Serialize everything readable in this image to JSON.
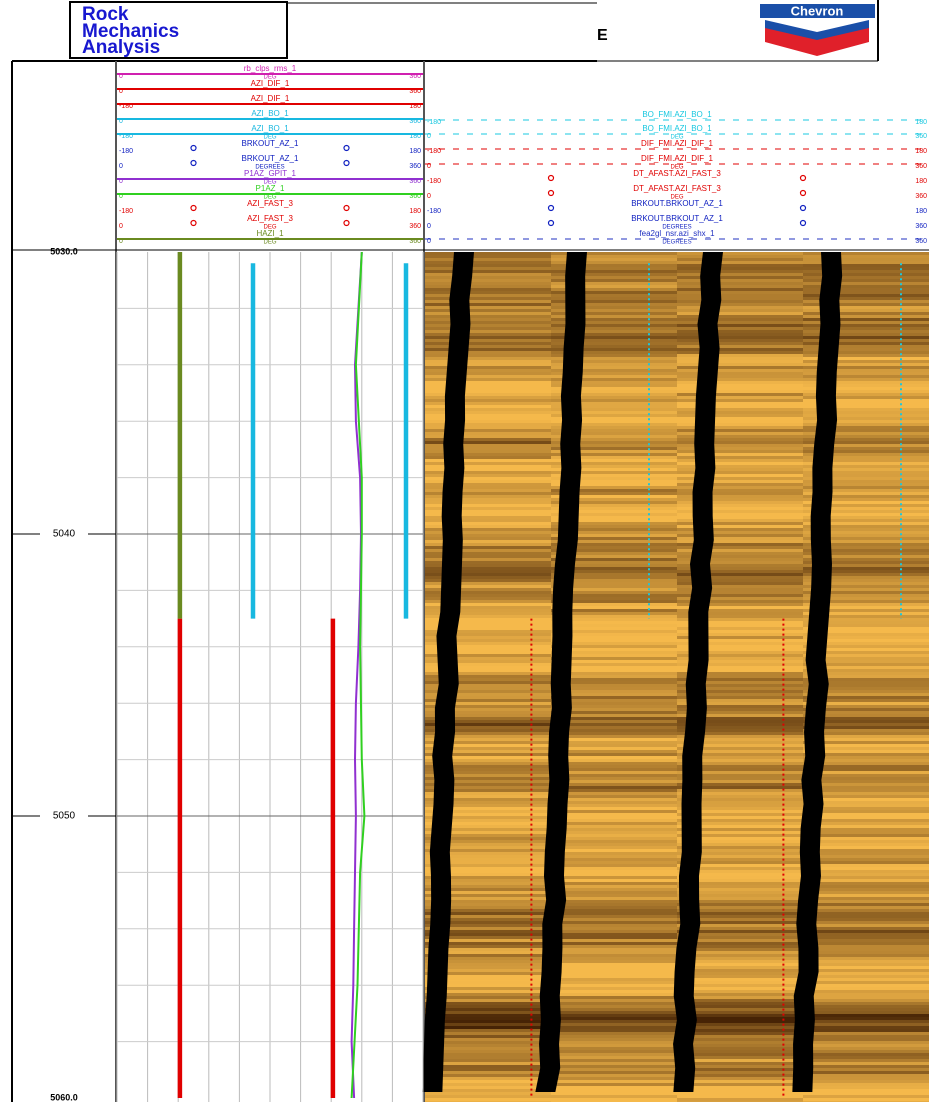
{
  "header": {
    "title_lines": [
      "Rock",
      "Mechanics",
      "Analysis"
    ],
    "partial_title": "E",
    "logo": "Chevron"
  },
  "depth": {
    "ylim": [
      5030,
      5060
    ],
    "ticks": [
      {
        "value": 5030,
        "label": "5030.0"
      },
      5040,
      5050,
      {
        "value": 5060,
        "label": "5060.0"
      }
    ]
  },
  "track1": {
    "headers": [
      {
        "name": "rb_clps_rms_1",
        "unit": "DEG",
        "min": 0,
        "max": 360,
        "color": "#d020b0",
        "style": "line"
      },
      {
        "name": "AZI_DIF_1",
        "min": 0,
        "max": 360,
        "color": "#e00000",
        "style": "line"
      },
      {
        "name": "AZI_DIF_1",
        "min": -180,
        "max": 180,
        "color": "#e00000",
        "style": "line"
      },
      {
        "name": "AZI_BO_1",
        "min": 0,
        "max": 360,
        "color": "#18b8e0",
        "style": "line",
        "depths": [
          5030.4,
          5043
        ],
        "values": [
          160,
          160
        ]
      },
      {
        "name": "AZI_BO_1",
        "unit": "DEG",
        "min": -180,
        "max": 180,
        "color": "#18b8e0",
        "style": "line",
        "depths": [
          5030.4,
          5043
        ],
        "values": [
          160,
          160
        ]
      },
      {
        "name": "BRKOUT_AZ_1",
        "min": -180,
        "max": 180,
        "color": "#1020c0",
        "style": "point"
      },
      {
        "name": "BRKOUT_AZ_1",
        "unit": "DEGREES",
        "min": 0,
        "max": 360,
        "color": "#1020c0",
        "style": "point"
      },
      {
        "name": "P1AZ_GPIT_1",
        "unit": "DEG",
        "min": 0,
        "max": 360,
        "color": "#9030d0",
        "style": "line",
        "depths": [
          5030,
          5032,
          5034,
          5036,
          5038,
          5040,
          5042,
          5044,
          5046,
          5048,
          5050,
          5052,
          5054,
          5056,
          5058,
          5060
        ],
        "values": [
          288,
          284,
          280,
          281,
          286,
          287,
          286,
          284,
          281,
          280,
          281,
          280,
          279,
          278,
          276,
          279
        ]
      },
      {
        "name": "P1AZ_1",
        "unit": "DEG",
        "min": 0,
        "max": 360,
        "color": "#30d020",
        "style": "line",
        "depths": [
          5030,
          5034,
          5038,
          5040,
          5044,
          5048,
          5050,
          5052,
          5056,
          5060
        ],
        "values": [
          288,
          281,
          288,
          288,
          286,
          288,
          291,
          286,
          283,
          276
        ]
      },
      {
        "name": "AZI_FAST_3",
        "min": -180,
        "max": 180,
        "color": "#e00000",
        "style": "point",
        "depths": [
          5043,
          5060
        ],
        "values": [
          74,
          74
        ]
      },
      {
        "name": "AZI_FAST_3",
        "unit": "DEG",
        "min": 0,
        "max": 360,
        "color": "#e00000",
        "style": "point",
        "depths": [
          5043,
          5060
        ],
        "values": [
          74,
          74
        ]
      },
      {
        "name": "HAZI_1",
        "unit": "DEG",
        "min": 0,
        "max": 360,
        "color": "#6a8a20",
        "style": "line",
        "depths": [
          5030,
          5043
        ],
        "values": [
          74,
          74
        ]
      }
    ]
  },
  "track2": {
    "headers": [
      {
        "name": "BO_FMI.AZI_BO_1",
        "min": -180,
        "max": 180,
        "color": "#18c8e0",
        "style": "dash",
        "depths": [
          5030.4,
          5043
        ],
        "values": [
          160,
          160
        ]
      },
      {
        "name": "BO_FMI.AZI_BO_1",
        "unit": "DEG",
        "min": 0,
        "max": 360,
        "color": "#18c8e0",
        "style": "dash",
        "depths": [
          5030.4,
          5043
        ],
        "values": [
          160,
          160
        ]
      },
      {
        "name": "DIF_FMI.AZI_DIF_1",
        "min": -180,
        "max": 180,
        "color": "#e00000",
        "style": "dash",
        "depths": [
          5043,
          5060
        ],
        "values": [
          76,
          76
        ]
      },
      {
        "name": "DIF_FMI.AZI_DIF_1",
        "unit": "DEG",
        "min": 0,
        "max": 360,
        "color": "#e00000",
        "style": "dash",
        "depths": [
          5043,
          5060
        ],
        "values": [
          76,
          76
        ]
      },
      {
        "name": "DT_AFAST.AZI_FAST_3",
        "min": -180,
        "max": 180,
        "color": "#e00000",
        "style": "point"
      },
      {
        "name": "DT_AFAST.AZI_FAST_3",
        "unit": "DEG",
        "min": 0,
        "max": 360,
        "color": "#e00000",
        "style": "point"
      },
      {
        "name": "BRKOUT.BRKOUT_AZ_1",
        "min": -180,
        "max": 180,
        "color": "#1020c0",
        "style": "point"
      },
      {
        "name": "BRKOUT.BRKOUT_AZ_1",
        "unit": "DEGREES",
        "min": 0,
        "max": 360,
        "color": "#1020c0",
        "style": "point"
      },
      {
        "name": "fea2gl_nsr.azi_shx_1",
        "unit": "DEGREES",
        "min": 0,
        "max": 360,
        "color": "#2030c0",
        "style": "dash"
      }
    ]
  }
}
